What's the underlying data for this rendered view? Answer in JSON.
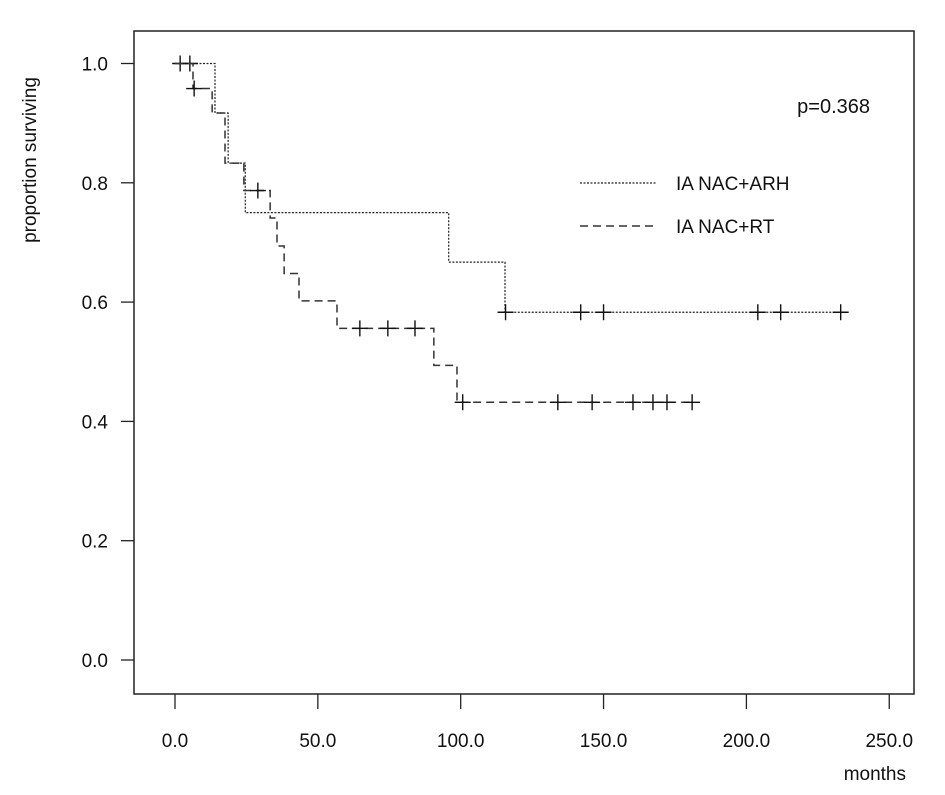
{
  "chart_data": {
    "type": "line",
    "subtype": "kaplan-meier",
    "title": "",
    "xlabel": "months",
    "ylabel": "proportion surviving",
    "xlim": [
      -10,
      260
    ],
    "ylim": [
      -0.06,
      1.05
    ],
    "xticks": [
      0,
      50,
      100,
      150,
      200,
      250
    ],
    "xtick_labels": [
      "0.0",
      "50.0",
      "100.0",
      "150.0",
      "200.0",
      "250.0"
    ],
    "yticks": [
      0,
      0.2,
      0.4,
      0.6,
      0.8,
      1.0
    ],
    "ytick_labels": [
      "0.0",
      "0.2",
      "0.4",
      "0.6",
      "0.8",
      "1.0"
    ],
    "grid": false,
    "legend_position": "top-right",
    "annotation": "p=0.368",
    "series": [
      {
        "name": "IA NAC+ARH",
        "style": "dotted",
        "color": "#222222",
        "step_times": [
          0,
          14.0,
          18.6,
          24.6,
          95.8,
          115.5
        ],
        "survival": [
          1.0,
          0.917,
          0.833,
          0.75,
          0.667,
          0.583
        ],
        "end_time": 233,
        "censored": [
          [
            1.8,
            1.0
          ],
          [
            5.2,
            1.0
          ],
          [
            115.7,
            0.583
          ],
          [
            142,
            0.583
          ],
          [
            150,
            0.583
          ],
          [
            204,
            0.583
          ],
          [
            212,
            0.583
          ],
          [
            233,
            0.583
          ]
        ]
      },
      {
        "name": "IA NAC+RT",
        "style": "dashed",
        "color": "#333333",
        "step_times": [
          0,
          6.3,
          13.0,
          17.5,
          24.1,
          33.3,
          35.7,
          38.2,
          43.4,
          56.7,
          90.6,
          98.7
        ],
        "survival": [
          1.0,
          0.958,
          0.917,
          0.833,
          0.787,
          0.741,
          0.694,
          0.648,
          0.602,
          0.556,
          0.494,
          0.432
        ],
        "end_time": 181,
        "censored": [
          [
            6.7,
            0.958
          ],
          [
            29.0,
            0.787
          ],
          [
            64.7,
            0.556
          ],
          [
            74.5,
            0.556
          ],
          [
            84.0,
            0.556
          ],
          [
            100.7,
            0.432
          ],
          [
            134,
            0.432
          ],
          [
            146,
            0.432
          ],
          [
            160.3,
            0.432
          ],
          [
            167.3,
            0.432
          ],
          [
            172.2,
            0.432
          ],
          [
            181,
            0.432
          ]
        ]
      }
    ]
  }
}
